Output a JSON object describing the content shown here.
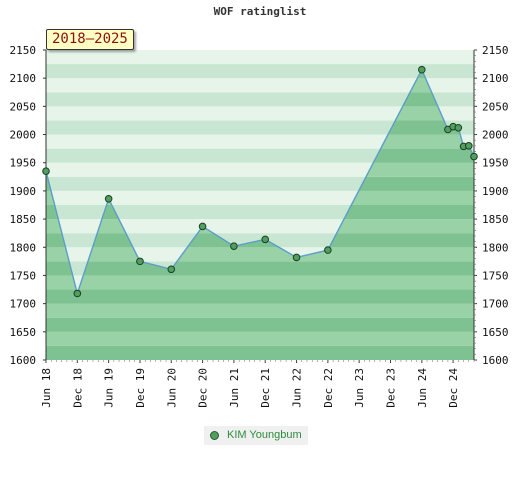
{
  "chart_data": {
    "type": "area",
    "title": "WOF ratinglist",
    "period_label": "2018–2025",
    "ylim": [
      1600,
      2150
    ],
    "yticks": [
      1600,
      1650,
      1700,
      1750,
      1800,
      1850,
      1900,
      1950,
      2000,
      2050,
      2100,
      2150
    ],
    "xtick_labels": [
      "Jun 18",
      "Dec 18",
      "Jun 19",
      "Dec 19",
      "Jun 20",
      "Dec 20",
      "Jun 21",
      "Dec 21",
      "Jun 22",
      "Dec 22",
      "Jun 23",
      "Dec 23",
      "Jun 24",
      "Dec 24"
    ],
    "grid": true,
    "legend_position": "bottom",
    "series": [
      {
        "name": "KIM Youngbum",
        "color": "#4fa05e",
        "points": [
          {
            "x": "2018-06",
            "y": 1935
          },
          {
            "x": "2018-12",
            "y": 1718
          },
          {
            "x": "2019-06",
            "y": 1886
          },
          {
            "x": "2019-12",
            "y": 1775
          },
          {
            "x": "2020-06",
            "y": 1761
          },
          {
            "x": "2020-12",
            "y": 1837
          },
          {
            "x": "2021-06",
            "y": 1802
          },
          {
            "x": "2021-12",
            "y": 1814
          },
          {
            "x": "2022-06",
            "y": 1782
          },
          {
            "x": "2022-12",
            "y": 1795
          },
          {
            "x": "2024-06",
            "y": 2115
          },
          {
            "x": "2024-11",
            "y": 2009
          },
          {
            "x": "2024-12",
            "y": 2014
          },
          {
            "x": "2025-01",
            "y": 2012
          },
          {
            "x": "2025-02",
            "y": 1979
          },
          {
            "x": "2025-03",
            "y": 1980
          },
          {
            "x": "2025-04",
            "y": 1961
          }
        ]
      }
    ]
  }
}
